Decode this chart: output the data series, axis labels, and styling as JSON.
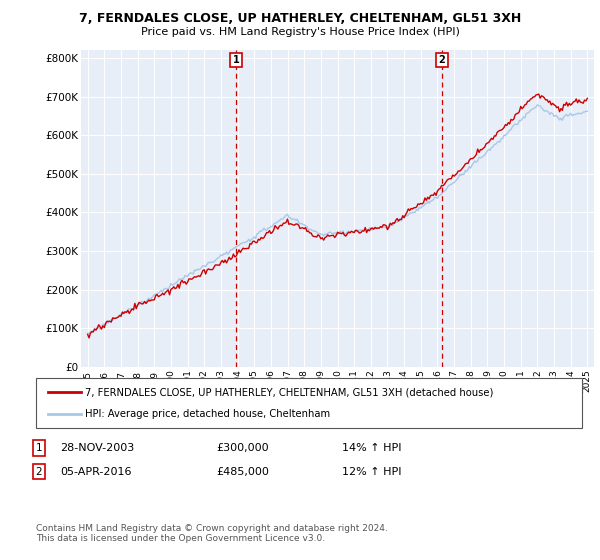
{
  "title": "7, FERNDALES CLOSE, UP HATHERLEY, CHELTENHAM, GL51 3XH",
  "subtitle": "Price paid vs. HM Land Registry's House Price Index (HPI)",
  "ylabel_ticks": [
    "£0",
    "£100K",
    "£200K",
    "£300K",
    "£400K",
    "£500K",
    "£600K",
    "£700K",
    "£800K"
  ],
  "ytick_values": [
    0,
    100000,
    200000,
    300000,
    400000,
    500000,
    600000,
    700000,
    800000
  ],
  "ylim": [
    0,
    820000
  ],
  "xlim_start": 1994.6,
  "xlim_end": 2025.4,
  "xtick_years": [
    1995,
    1996,
    1997,
    1998,
    1999,
    2000,
    2001,
    2002,
    2003,
    2004,
    2005,
    2006,
    2007,
    2008,
    2009,
    2010,
    2011,
    2012,
    2013,
    2014,
    2015,
    2016,
    2017,
    2018,
    2019,
    2020,
    2021,
    2022,
    2023,
    2024,
    2025
  ],
  "hpi_color": "#a8c8e8",
  "price_color": "#cc0000",
  "dashed_color": "#cc0000",
  "background_color": "#e8eef8",
  "sale1_x": 2003.91,
  "sale1_y": 300000,
  "sale2_x": 2016.27,
  "sale2_y": 485000,
  "legend1": "7, FERNDALES CLOSE, UP HATHERLEY, CHELTENHAM, GL51 3XH (detached house)",
  "legend2": "HPI: Average price, detached house, Cheltenham",
  "table_row1": [
    "1",
    "28-NOV-2003",
    "£300,000",
    "14% ↑ HPI"
  ],
  "table_row2": [
    "2",
    "05-APR-2016",
    "£485,000",
    "12% ↑ HPI"
  ],
  "footnote": "Contains HM Land Registry data © Crown copyright and database right 2024.\nThis data is licensed under the Open Government Licence v3.0."
}
